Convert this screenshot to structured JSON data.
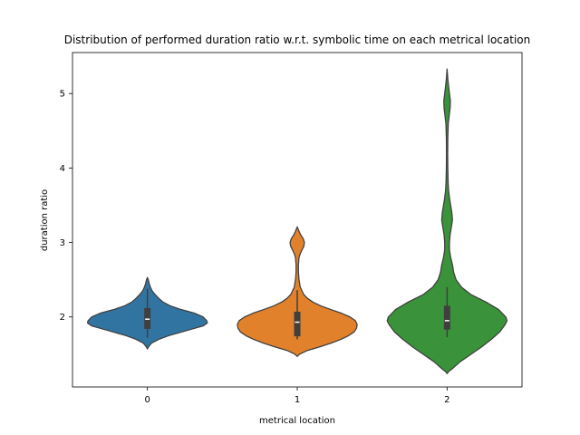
{
  "chart_data": {
    "type": "violin",
    "title": "Distribution of performed duration ratio w.r.t. symbolic time on each metrical location",
    "xlabel": "metrical location",
    "ylabel": "duration ratio",
    "categories": [
      "0",
      "1",
      "2"
    ],
    "colors": [
      "#3274a1",
      "#e1812c",
      "#3a923a"
    ],
    "yticks": [
      2,
      3,
      4,
      5
    ],
    "ylim": [
      1.06,
      5.55
    ],
    "grid": false,
    "legend": "none",
    "violins": [
      {
        "category": "0",
        "min": 1.57,
        "max": 2.53,
        "q1": 1.84,
        "median": 1.97,
        "q3": 2.12,
        "whisker_low": 1.72,
        "whisker_high": 2.38,
        "profile": [
          [
            1.57,
            0.0
          ],
          [
            1.6,
            0.02
          ],
          [
            1.65,
            0.07
          ],
          [
            1.7,
            0.19
          ],
          [
            1.75,
            0.36
          ],
          [
            1.8,
            0.58
          ],
          [
            1.85,
            0.8
          ],
          [
            1.88,
            0.93
          ],
          [
            1.92,
            1.0
          ],
          [
            1.95,
            0.99
          ],
          [
            2.0,
            0.93
          ],
          [
            2.05,
            0.79
          ],
          [
            2.1,
            0.56
          ],
          [
            2.15,
            0.38
          ],
          [
            2.2,
            0.26
          ],
          [
            2.25,
            0.19
          ],
          [
            2.3,
            0.13
          ],
          [
            2.35,
            0.08
          ],
          [
            2.4,
            0.05
          ],
          [
            2.45,
            0.03
          ],
          [
            2.5,
            0.015
          ],
          [
            2.53,
            0.0
          ]
        ]
      },
      {
        "category": "1",
        "min": 1.47,
        "max": 3.21,
        "q1": 1.74,
        "median": 1.93,
        "q3": 2.07,
        "whisker_low": 1.7,
        "whisker_high": 2.36,
        "profile": [
          [
            1.47,
            0.0
          ],
          [
            1.5,
            0.04
          ],
          [
            1.55,
            0.17
          ],
          [
            1.6,
            0.38
          ],
          [
            1.65,
            0.57
          ],
          [
            1.7,
            0.73
          ],
          [
            1.75,
            0.86
          ],
          [
            1.8,
            0.95
          ],
          [
            1.85,
            0.99
          ],
          [
            1.9,
            1.0
          ],
          [
            1.95,
            0.97
          ],
          [
            2.0,
            0.88
          ],
          [
            2.05,
            0.74
          ],
          [
            2.1,
            0.56
          ],
          [
            2.15,
            0.39
          ],
          [
            2.2,
            0.26
          ],
          [
            2.25,
            0.17
          ],
          [
            2.3,
            0.11
          ],
          [
            2.4,
            0.05
          ],
          [
            2.5,
            0.03
          ],
          [
            2.6,
            0.02
          ],
          [
            2.7,
            0.02
          ],
          [
            2.8,
            0.03
          ],
          [
            2.85,
            0.05
          ],
          [
            2.9,
            0.08
          ],
          [
            2.95,
            0.11
          ],
          [
            3.0,
            0.12
          ],
          [
            3.05,
            0.1
          ],
          [
            3.1,
            0.06
          ],
          [
            3.15,
            0.03
          ],
          [
            3.21,
            0.0
          ]
        ]
      },
      {
        "category": "2",
        "min": 1.24,
        "max": 5.33,
        "q1": 1.83,
        "median": 1.95,
        "q3": 2.15,
        "whisker_low": 1.73,
        "whisker_high": 2.4,
        "profile": [
          [
            1.24,
            0.0
          ],
          [
            1.27,
            0.03
          ],
          [
            1.3,
            0.08
          ],
          [
            1.4,
            0.22
          ],
          [
            1.5,
            0.4
          ],
          [
            1.6,
            0.58
          ],
          [
            1.7,
            0.74
          ],
          [
            1.8,
            0.88
          ],
          [
            1.9,
            0.97
          ],
          [
            1.95,
            1.0
          ],
          [
            2.0,
            0.98
          ],
          [
            2.1,
            0.86
          ],
          [
            2.2,
            0.65
          ],
          [
            2.3,
            0.4
          ],
          [
            2.4,
            0.24
          ],
          [
            2.5,
            0.15
          ],
          [
            2.6,
            0.11
          ],
          [
            2.7,
            0.09
          ],
          [
            2.8,
            0.06
          ],
          [
            2.9,
            0.04
          ],
          [
            3.0,
            0.04
          ],
          [
            3.1,
            0.05
          ],
          [
            3.2,
            0.07
          ],
          [
            3.3,
            0.09
          ],
          [
            3.4,
            0.08
          ],
          [
            3.5,
            0.06
          ],
          [
            3.6,
            0.04
          ],
          [
            3.7,
            0.025
          ],
          [
            3.8,
            0.018
          ],
          [
            4.0,
            0.012
          ],
          [
            4.2,
            0.01
          ],
          [
            4.4,
            0.012
          ],
          [
            4.6,
            0.02
          ],
          [
            4.7,
            0.035
          ],
          [
            4.8,
            0.05
          ],
          [
            4.9,
            0.055
          ],
          [
            5.0,
            0.04
          ],
          [
            5.1,
            0.025
          ],
          [
            5.2,
            0.012
          ],
          [
            5.33,
            0.0
          ]
        ]
      }
    ]
  }
}
